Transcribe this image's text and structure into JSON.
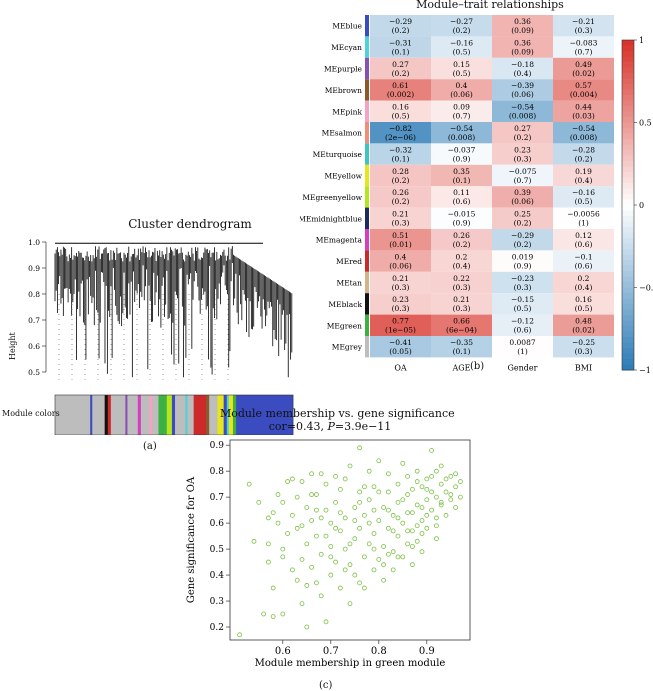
{
  "panel_labels": {
    "a": "(a)",
    "b": "(b)",
    "c": "(c)"
  },
  "chart_data": [
    {
      "type": "heatmap",
      "title": "Module–trait relationships",
      "rows": [
        "MEblue",
        "MEcyan",
        "MEpurple",
        "MEbrown",
        "MEpink",
        "MEsalmon",
        "MEturquoise",
        "MEyellow",
        "MEgreenyellow",
        "MEmidnightblue",
        "MEmagenta",
        "MEred",
        "MEtan",
        "MEblack",
        "MEgreen",
        "MEgrey"
      ],
      "row_colors": [
        "#3b4cc0",
        "#4fd1d9",
        "#8a4fb5",
        "#8b5a2b",
        "#f4a3c4",
        "#f08e7a",
        "#40c4c0",
        "#e6e61a",
        "#b5e61d",
        "#1f2a5a",
        "#d33fbd",
        "#cc2a2a",
        "#d2b48c",
        "#111111",
        "#3cb043",
        "#bdbdbd"
      ],
      "columns": [
        "OA",
        "AGE",
        "Gender",
        "BMI"
      ],
      "cells": [
        [
          [
            "−0.29",
            "(0.2)",
            -0.29
          ],
          [
            "−0.27",
            "(0.2)",
            -0.27
          ],
          [
            "0.36",
            "(0.09)",
            0.36
          ],
          [
            "−0.21",
            "(0.3)",
            -0.21
          ]
        ],
        [
          [
            "−0.31",
            "(0.1)",
            -0.31
          ],
          [
            "−0.16",
            "(0.5)",
            -0.16
          ],
          [
            "0.36",
            "(0.09)",
            0.36
          ],
          [
            "−0.083",
            "(0.7)",
            -0.083
          ]
        ],
        [
          [
            "0.27",
            "(0.2)",
            0.27
          ],
          [
            "0.15",
            "(0.5)",
            0.15
          ],
          [
            "−0.18",
            "(0.4)",
            -0.18
          ],
          [
            "0.49",
            "(0.02)",
            0.49
          ]
        ],
        [
          [
            "0.61",
            "(0.002)",
            0.61
          ],
          [
            "0.4",
            "(0.06)",
            0.4
          ],
          [
            "−0.39",
            "(0.06)",
            -0.39
          ],
          [
            "0.57",
            "(0.004)",
            0.57
          ]
        ],
        [
          [
            "0.16",
            "(0.5)",
            0.16
          ],
          [
            "0.09",
            "(0.7)",
            0.09
          ],
          [
            "−0.54",
            "(0.008)",
            -0.54
          ],
          [
            "0.44",
            "(0.03)",
            0.44
          ]
        ],
        [
          [
            "−0.82",
            "(2e−06)",
            -0.82
          ],
          [
            "−0.54",
            "(0.008)",
            -0.54
          ],
          [
            "0.27",
            "(0.2)",
            0.27
          ],
          [
            "−0.54",
            "(0.008)",
            -0.54
          ]
        ],
        [
          [
            "−0.32",
            "(0.1)",
            -0.32
          ],
          [
            "−0.037",
            "(0.9)",
            -0.037
          ],
          [
            "0.23",
            "(0.3)",
            0.23
          ],
          [
            "−0.28",
            "(0.2)",
            -0.28
          ]
        ],
        [
          [
            "0.28",
            "(0.2)",
            0.28
          ],
          [
            "0.35",
            "(0.1)",
            0.35
          ],
          [
            "−0.075",
            "(0.7)",
            -0.075
          ],
          [
            "0.19",
            "(0.4)",
            0.19
          ]
        ],
        [
          [
            "0.26",
            "(0.2)",
            0.26
          ],
          [
            "0.11",
            "(0.6)",
            0.11
          ],
          [
            "0.39",
            "(0.06)",
            0.39
          ],
          [
            "−0.16",
            "(0.5)",
            -0.16
          ]
        ],
        [
          [
            "0.21",
            "(0.3)",
            0.21
          ],
          [
            "−0.015",
            "(0.9)",
            -0.015
          ],
          [
            "0.25",
            "(0.2)",
            0.25
          ],
          [
            "−0.0056",
            "(1)",
            -0.0056
          ]
        ],
        [
          [
            "0.51",
            "(0.01)",
            0.51
          ],
          [
            "0.26",
            "(0.2)",
            0.26
          ],
          [
            "−0.29",
            "(0.2)",
            -0.29
          ],
          [
            "0.12",
            "(0.6)",
            0.12
          ]
        ],
        [
          [
            "0.4",
            "(0.06)",
            0.4
          ],
          [
            "0.2",
            "(0.4)",
            0.2
          ],
          [
            "0.019",
            "(0.9)",
            0.019
          ],
          [
            "−0.1",
            "(0.6)",
            -0.1
          ]
        ],
        [
          [
            "0.21",
            "(0.3)",
            0.21
          ],
          [
            "0.22",
            "(0.3)",
            0.22
          ],
          [
            "−0.23",
            "(0.3)",
            -0.23
          ],
          [
            "0.2",
            "(0.4)",
            0.2
          ]
        ],
        [
          [
            "0.23",
            "(0.3)",
            0.23
          ],
          [
            "0.21",
            "(0.3)",
            0.21
          ],
          [
            "−0.15",
            "(0.5)",
            -0.15
          ],
          [
            "0.16",
            "(0.5)",
            0.16
          ]
        ],
        [
          [
            "0.77",
            "(1e−05)",
            0.77
          ],
          [
            "0.66",
            "(6e−04)",
            0.66
          ],
          [
            "−0.12",
            "(0.6)",
            -0.12
          ],
          [
            "0.48",
            "(0.02)",
            0.48
          ]
        ],
        [
          [
            "−0.41",
            "(0.05)",
            -0.41
          ],
          [
            "−0.35",
            "(0.1)",
            -0.35
          ],
          [
            "0.0087",
            "(1)",
            0.0087
          ],
          [
            "−0.25",
            "(0.3)",
            -0.25
          ]
        ]
      ],
      "colorbar": {
        "ticks": [
          "1",
          "0.5",
          "0",
          "−0.5",
          "−1"
        ],
        "range": [
          -1,
          1
        ]
      }
    },
    {
      "type": "dendrogram",
      "title": "Cluster dendrogram",
      "ylabel": "Height",
      "yticks": [
        "1.0",
        "0.9",
        "0.8",
        "0.7",
        "0.6",
        "0.5"
      ],
      "ylim": [
        0.45,
        1.0
      ],
      "module_colors_label": "Module colors",
      "module_color_bands": [
        "#bdbdbd",
        "#bdbdbd",
        "#3b4cc0",
        "#bdbdbd",
        "#111111",
        "#cc2a2a",
        "#bdbdbd",
        "#8a4fb5",
        "#bdbdbd",
        "#d33fbd",
        "#bdbdbd",
        "#f4a3c4",
        "#bdbdbd",
        "#3cb043",
        "#b5e61d",
        "#3b4cc0",
        "#bdbdbd",
        "#4fd1d9",
        "#bdbdbd",
        "#cc2a2a",
        "#8b5a2b",
        "#bdbdbd",
        "#e6e61a",
        "#3b4cc0",
        "#4fd1d9",
        "#e6e61a",
        "#3cb043",
        "#3b4cc0"
      ]
    },
    {
      "type": "scatter",
      "title": "Module membership vs. gene significance",
      "subtitle_prefix": "cor=0.43, ",
      "subtitle_p": "P",
      "subtitle_suffix": "=3.9e−11",
      "xlabel": "Module membership in green module",
      "ylabel": "Gene significance for OA",
      "xlim": [
        0.49,
        0.99
      ],
      "ylim": [
        0.15,
        0.92
      ],
      "xticks": [
        "0.6",
        "0.7",
        "0.8",
        "0.9"
      ],
      "yticks": [
        "0.9",
        "0.8",
        "0.7",
        "0.6",
        "0.5",
        "0.4",
        "0.3",
        "0.2"
      ],
      "point_color": "#7bc043",
      "points": [
        [
          0.51,
          0.17
        ],
        [
          0.53,
          0.75
        ],
        [
          0.54,
          0.53
        ],
        [
          0.55,
          0.68
        ],
        [
          0.56,
          0.25
        ],
        [
          0.57,
          0.45
        ],
        [
          0.57,
          0.62
        ],
        [
          0.58,
          0.24
        ],
        [
          0.58,
          0.35
        ],
        [
          0.59,
          0.6
        ],
        [
          0.59,
          0.71
        ],
        [
          0.6,
          0.25
        ],
        [
          0.6,
          0.5
        ],
        [
          0.61,
          0.56
        ],
        [
          0.61,
          0.76
        ],
        [
          0.62,
          0.63
        ],
        [
          0.62,
          0.42
        ],
        [
          0.63,
          0.58
        ],
        [
          0.63,
          0.7
        ],
        [
          0.64,
          0.46
        ],
        [
          0.64,
          0.76
        ],
        [
          0.64,
          0.29
        ],
        [
          0.65,
          0.66
        ],
        [
          0.65,
          0.2
        ],
        [
          0.65,
          0.52
        ],
        [
          0.66,
          0.43
        ],
        [
          0.66,
          0.61
        ],
        [
          0.66,
          0.79
        ],
        [
          0.67,
          0.37
        ],
        [
          0.67,
          0.71
        ],
        [
          0.67,
          0.55
        ],
        [
          0.68,
          0.79
        ],
        [
          0.68,
          0.48
        ],
        [
          0.68,
          0.32
        ],
        [
          0.69,
          0.65
        ],
        [
          0.69,
          0.75
        ],
        [
          0.69,
          0.22
        ],
        [
          0.7,
          0.51
        ],
        [
          0.7,
          0.6
        ],
        [
          0.7,
          0.4
        ],
        [
          0.71,
          0.78
        ],
        [
          0.71,
          0.68
        ],
        [
          0.71,
          0.45
        ],
        [
          0.72,
          0.57
        ],
        [
          0.72,
          0.35
        ],
        [
          0.72,
          0.73
        ],
        [
          0.73,
          0.62
        ],
        [
          0.73,
          0.5
        ],
        [
          0.74,
          0.44
        ],
        [
          0.74,
          0.82
        ],
        [
          0.74,
          0.29
        ],
        [
          0.75,
          0.66
        ],
        [
          0.75,
          0.54
        ],
        [
          0.75,
          0.4
        ],
        [
          0.76,
          0.89
        ],
        [
          0.76,
          0.72
        ],
        [
          0.76,
          0.58
        ],
        [
          0.77,
          0.47
        ],
        [
          0.77,
          0.35
        ],
        [
          0.77,
          0.63
        ],
        [
          0.78,
          0.8
        ],
        [
          0.78,
          0.52
        ],
        [
          0.78,
          0.69
        ],
        [
          0.79,
          0.42
        ],
        [
          0.79,
          0.56
        ],
        [
          0.79,
          0.74
        ],
        [
          0.8,
          0.61
        ],
        [
          0.8,
          0.46
        ],
        [
          0.8,
          0.84
        ],
        [
          0.81,
          0.66
        ],
        [
          0.81,
          0.51
        ],
        [
          0.81,
          0.38
        ],
        [
          0.82,
          0.72
        ],
        [
          0.82,
          0.58
        ],
        [
          0.82,
          0.79
        ],
        [
          0.83,
          0.49
        ],
        [
          0.83,
          0.63
        ],
        [
          0.83,
          0.42
        ],
        [
          0.84,
          0.75
        ],
        [
          0.84,
          0.55
        ],
        [
          0.84,
          0.68
        ],
        [
          0.85,
          0.6
        ],
        [
          0.85,
          0.83
        ],
        [
          0.85,
          0.47
        ],
        [
          0.86,
          0.71
        ],
        [
          0.86,
          0.52
        ],
        [
          0.86,
          0.78
        ],
        [
          0.87,
          0.64
        ],
        [
          0.87,
          0.57
        ],
        [
          0.87,
          0.44
        ],
        [
          0.88,
          0.8
        ],
        [
          0.88,
          0.67
        ],
        [
          0.88,
          0.53
        ],
        [
          0.89,
          0.74
        ],
        [
          0.89,
          0.61
        ],
        [
          0.89,
          0.49
        ],
        [
          0.9,
          0.69
        ],
        [
          0.9,
          0.77
        ],
        [
          0.9,
          0.58
        ],
        [
          0.91,
          0.88
        ],
        [
          0.91,
          0.65
        ],
        [
          0.91,
          0.72
        ],
        [
          0.92,
          0.62
        ],
        [
          0.92,
          0.8
        ],
        [
          0.92,
          0.54
        ],
        [
          0.93,
          0.75
        ],
        [
          0.93,
          0.68
        ],
        [
          0.94,
          0.77
        ],
        [
          0.94,
          0.63
        ],
        [
          0.95,
          0.71
        ],
        [
          0.95,
          0.78
        ],
        [
          0.96,
          0.66
        ],
        [
          0.96,
          0.74
        ],
        [
          0.97,
          0.7
        ],
        [
          0.57,
          0.52
        ],
        [
          0.6,
          0.68
        ],
        [
          0.63,
          0.38
        ],
        [
          0.66,
          0.71
        ],
        [
          0.69,
          0.55
        ],
        [
          0.72,
          0.64
        ],
        [
          0.74,
          0.52
        ],
        [
          0.77,
          0.74
        ],
        [
          0.79,
          0.65
        ],
        [
          0.82,
          0.48
        ],
        [
          0.84,
          0.62
        ],
        [
          0.87,
          0.73
        ],
        [
          0.89,
          0.56
        ],
        [
          0.92,
          0.7
        ],
        [
          0.94,
          0.72
        ],
        [
          0.62,
          0.77
        ],
        [
          0.73,
          0.77
        ],
        [
          0.86,
          0.64
        ],
        [
          0.9,
          0.63
        ],
        [
          0.93,
          0.82
        ],
        [
          0.76,
          0.37
        ],
        [
          0.8,
          0.72
        ],
        [
          0.83,
          0.57
        ],
        [
          0.88,
          0.76
        ],
        [
          0.71,
          0.58
        ],
        [
          0.68,
          0.62
        ],
        [
          0.85,
          0.69
        ],
        [
          0.91,
          0.78
        ],
        [
          0.78,
          0.6
        ],
        [
          0.81,
          0.44
        ],
        [
          0.65,
          0.36
        ],
        [
          0.7,
          0.47
        ],
        [
          0.75,
          0.61
        ],
        [
          0.95,
          0.69
        ],
        [
          0.97,
          0.76
        ],
        [
          0.6,
          0.47
        ],
        [
          0.58,
          0.64
        ],
        [
          0.87,
          0.51
        ],
        [
          0.84,
          0.47
        ],
        [
          0.89,
          0.66
        ],
        [
          0.92,
          0.59
        ],
        [
          0.79,
          0.5
        ],
        [
          0.73,
          0.42
        ],
        [
          0.67,
          0.65
        ],
        [
          0.64,
          0.59
        ],
        [
          0.86,
          0.57
        ],
        [
          0.82,
          0.65
        ],
        [
          0.76,
          0.68
        ],
        [
          0.88,
          0.59
        ],
        [
          0.9,
          0.73
        ],
        [
          0.93,
          0.67
        ],
        [
          0.96,
          0.79
        ]
      ]
    }
  ]
}
